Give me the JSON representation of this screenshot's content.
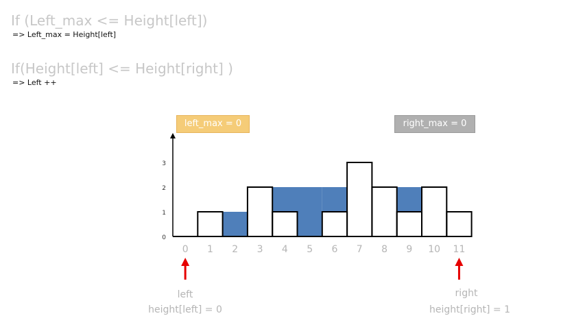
{
  "conditions": [
    {
      "title": "If (Left_max <= Height[left])",
      "action": "=> Left_max = Height[left]"
    },
    {
      "title": "If(Height[left] <= Height[right] )",
      "action": "=> Left ++"
    }
  ],
  "badges": {
    "left_max": "left_max = 0",
    "right_max": "right_max = 0"
  },
  "chart_data": {
    "type": "bar",
    "categories": [
      "0",
      "1",
      "2",
      "3",
      "4",
      "5",
      "6",
      "7",
      "8",
      "9",
      "10",
      "11"
    ],
    "heights": [
      0,
      1,
      0,
      2,
      1,
      0,
      1,
      3,
      2,
      1,
      2,
      1
    ],
    "water": [
      0,
      0,
      1,
      0,
      1,
      2,
      1,
      0,
      0,
      1,
      0,
      0
    ],
    "y_ticks": [
      "0",
      "1",
      "2",
      "3"
    ],
    "ylim": [
      0,
      3
    ],
    "colors": {
      "water": "#4f7fba",
      "outline": "#000000"
    }
  },
  "pointers": {
    "left": {
      "label": "left",
      "value": "height[left] = 0",
      "index": 0
    },
    "right": {
      "label": "right",
      "value": "height[right] = 1",
      "index": 11
    },
    "arrow_color": "#e60000"
  }
}
